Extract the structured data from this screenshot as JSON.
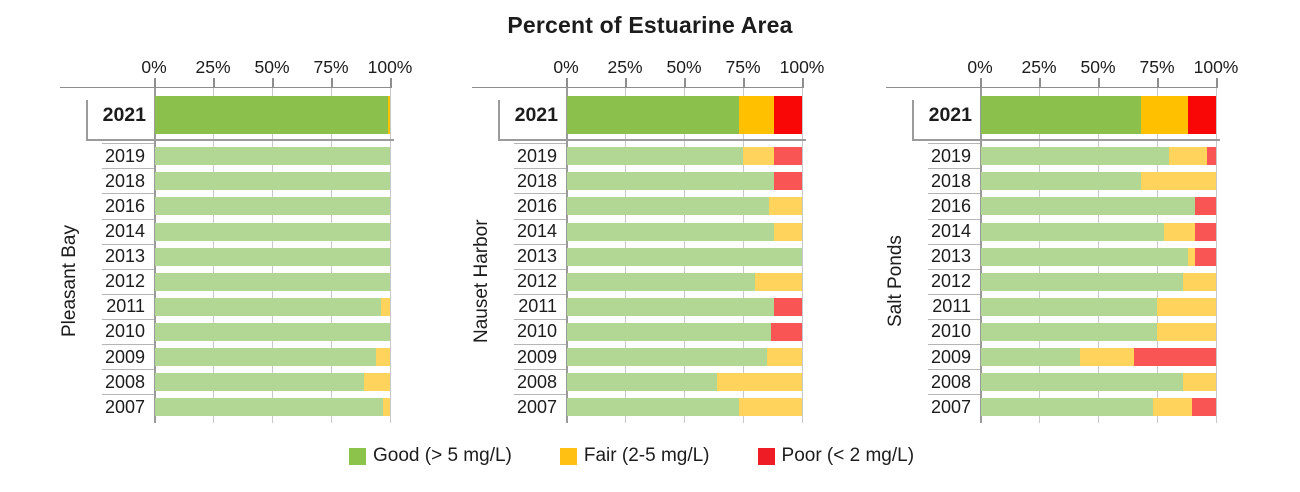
{
  "title": "Percent of Estuarine Area",
  "legend": [
    {
      "key": "good",
      "label": "Good (> 5 mg/L)",
      "color": "#8CC34B"
    },
    {
      "key": "fair",
      "label": "Fair (2-5 mg/L)",
      "color": "#FFC013"
    },
    {
      "key": "poor",
      "label": "Poor (< 2 mg/L)",
      "color": "#EE1C25"
    }
  ],
  "colors": {
    "good_highlight": "#8CC04D",
    "fair_highlight": "#FFC000",
    "poor_highlight": "#F90606",
    "good_muted": "#B2D794",
    "fair_muted": "#FFD35C",
    "poor_muted": "#FA5555"
  },
  "chart_data": {
    "type": "bar",
    "stacked": true,
    "orientation": "horizontal",
    "title": "Percent of Estuarine Area",
    "x_unit": "percent of estuarine area",
    "xlim": [
      0,
      100
    ],
    "x_ticks": [
      0,
      25,
      50,
      75,
      100
    ],
    "x_tick_labels": [
      "0%",
      "25%",
      "50%",
      "75%",
      "100%"
    ],
    "series_names": [
      "Good (> 5 mg/L)",
      "Fair (2-5 mg/L)",
      "Poor (< 2 mg/L)"
    ],
    "highlighted_year": "2021",
    "grid": "vertical-ticks",
    "legend_position": "bottom",
    "panels": [
      {
        "name": "Pleasant Bay",
        "rows": [
          {
            "year": "2021",
            "good": 99,
            "fair": 1,
            "poor": 0
          },
          {
            "year": "2019",
            "good": 100,
            "fair": 0,
            "poor": 0
          },
          {
            "year": "2018",
            "good": 100,
            "fair": 0,
            "poor": 0
          },
          {
            "year": "2016",
            "good": 100,
            "fair": 0,
            "poor": 0
          },
          {
            "year": "2014",
            "good": 100,
            "fair": 0,
            "poor": 0
          },
          {
            "year": "2013",
            "good": 100,
            "fair": 0,
            "poor": 0
          },
          {
            "year": "2012",
            "good": 100,
            "fair": 0,
            "poor": 0
          },
          {
            "year": "2011",
            "good": 96,
            "fair": 4,
            "poor": 0
          },
          {
            "year": "2010",
            "good": 100,
            "fair": 0,
            "poor": 0
          },
          {
            "year": "2009",
            "good": 94,
            "fair": 6,
            "poor": 0
          },
          {
            "year": "2008",
            "good": 89,
            "fair": 11,
            "poor": 0
          },
          {
            "year": "2007",
            "good": 97,
            "fair": 3,
            "poor": 0
          }
        ]
      },
      {
        "name": "Nauset Harbor",
        "rows": [
          {
            "year": "2021",
            "good": 73,
            "fair": 15,
            "poor": 12
          },
          {
            "year": "2019",
            "good": 75,
            "fair": 13,
            "poor": 12
          },
          {
            "year": "2018",
            "good": 88,
            "fair": 0,
            "poor": 12
          },
          {
            "year": "2016",
            "good": 86,
            "fair": 14,
            "poor": 0
          },
          {
            "year": "2014",
            "good": 88,
            "fair": 12,
            "poor": 0
          },
          {
            "year": "2013",
            "good": 100,
            "fair": 0,
            "poor": 0
          },
          {
            "year": "2012",
            "good": 80,
            "fair": 20,
            "poor": 0
          },
          {
            "year": "2011",
            "good": 88,
            "fair": 0,
            "poor": 12
          },
          {
            "year": "2010",
            "good": 87,
            "fair": 0,
            "poor": 13
          },
          {
            "year": "2009",
            "good": 85,
            "fair": 15,
            "poor": 0
          },
          {
            "year": "2008",
            "good": 64,
            "fair": 36,
            "poor": 0
          },
          {
            "year": "2007",
            "good": 73,
            "fair": 27,
            "poor": 0
          }
        ]
      },
      {
        "name": "Salt Ponds",
        "rows": [
          {
            "year": "2021",
            "good": 68,
            "fair": 20,
            "poor": 12
          },
          {
            "year": "2019",
            "good": 80,
            "fair": 16,
            "poor": 4
          },
          {
            "year": "2018",
            "good": 68,
            "fair": 32,
            "poor": 0
          },
          {
            "year": "2016",
            "good": 91,
            "fair": 0,
            "poor": 9
          },
          {
            "year": "2014",
            "good": 78,
            "fair": 13,
            "poor": 9
          },
          {
            "year": "2013",
            "good": 88,
            "fair": 3,
            "poor": 9
          },
          {
            "year": "2012",
            "good": 86,
            "fair": 14,
            "poor": 0
          },
          {
            "year": "2011",
            "good": 75,
            "fair": 25,
            "poor": 0
          },
          {
            "year": "2010",
            "good": 75,
            "fair": 25,
            "poor": 0
          },
          {
            "year": "2009",
            "good": 42,
            "fair": 23,
            "poor": 35
          },
          {
            "year": "2008",
            "good": 86,
            "fair": 14,
            "poor": 0
          },
          {
            "year": "2007",
            "good": 73,
            "fair": 17,
            "poor": 10
          }
        ]
      }
    ]
  }
}
